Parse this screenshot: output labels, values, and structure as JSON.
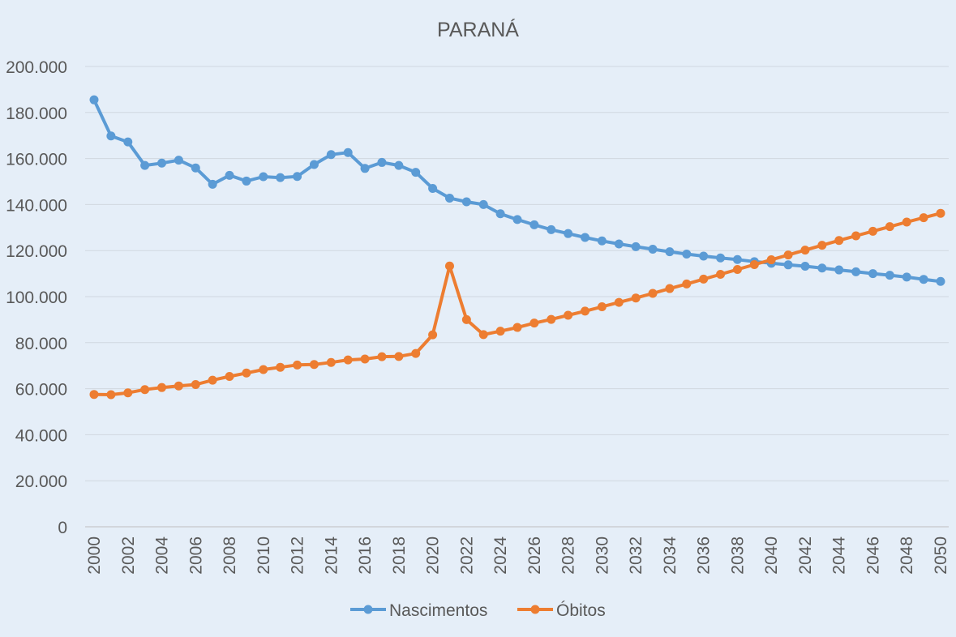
{
  "chart_data": {
    "type": "line",
    "title": "PARANÁ",
    "xlabel": "",
    "ylabel": "",
    "ylim": [
      0,
      200000
    ],
    "ytick_values": [
      0,
      20000,
      40000,
      60000,
      80000,
      100000,
      120000,
      140000,
      160000,
      180000,
      200000
    ],
    "ytick_labels": [
      "0",
      "20.000",
      "40.000",
      "60.000",
      "80.000",
      "100.000",
      "120.000",
      "140.000",
      "160.000",
      "180.000",
      "200.000"
    ],
    "xtick_labels": [
      "2000",
      "2002",
      "2004",
      "2006",
      "2008",
      "2010",
      "2012",
      "2014",
      "2016",
      "2018",
      "2020",
      "2022",
      "2024",
      "2026",
      "2028",
      "2030",
      "2032",
      "2034",
      "2036",
      "2038",
      "2040",
      "2042",
      "2044",
      "2046",
      "2048",
      "2050"
    ],
    "grid": true,
    "legend_position": "bottom",
    "x": [
      2000,
      2001,
      2002,
      2003,
      2004,
      2005,
      2006,
      2007,
      2008,
      2009,
      2010,
      2011,
      2012,
      2013,
      2014,
      2015,
      2016,
      2017,
      2018,
      2019,
      2020,
      2021,
      2022,
      2023,
      2024,
      2025,
      2026,
      2027,
      2028,
      2029,
      2030,
      2031,
      2032,
      2033,
      2034,
      2035,
      2036,
      2037,
      2038,
      2039,
      2040,
      2041,
      2042,
      2043,
      2044,
      2045,
      2046,
      2047,
      2048,
      2049,
      2050
    ],
    "series": [
      {
        "name": "Nascimentos",
        "color": "#5b9bd5",
        "values": [
          185500,
          169800,
          167200,
          157000,
          158000,
          159300,
          155900,
          148800,
          152700,
          150200,
          152100,
          151700,
          152200,
          157400,
          161700,
          162600,
          155700,
          158300,
          157000,
          154000,
          147000,
          142800,
          141200,
          140000,
          136000,
          133500,
          131200,
          129100,
          127400,
          125700,
          124200,
          122900,
          121700,
          120600,
          119500,
          118500,
          117600,
          116800,
          116100,
          115200,
          114500,
          113800,
          113200,
          112400,
          111600,
          110800,
          110000,
          109300,
          108500,
          107500,
          106600
        ]
      },
      {
        "name": "Óbitos",
        "color": "#ed7d31",
        "values": [
          57500,
          57400,
          58200,
          59600,
          60500,
          61200,
          61800,
          63700,
          65300,
          66800,
          68300,
          69300,
          70300,
          70500,
          71400,
          72500,
          72900,
          73900,
          74000,
          75300,
          83400,
          113300,
          90000,
          83500,
          85000,
          86600,
          88500,
          90100,
          91900,
          93700,
          95600,
          97500,
          99400,
          101400,
          103500,
          105500,
          107600,
          109700,
          111800,
          113900,
          116000,
          118100,
          120200,
          122300,
          124400,
          126400,
          128400,
          130400,
          132400,
          134300,
          136200
        ]
      }
    ]
  }
}
